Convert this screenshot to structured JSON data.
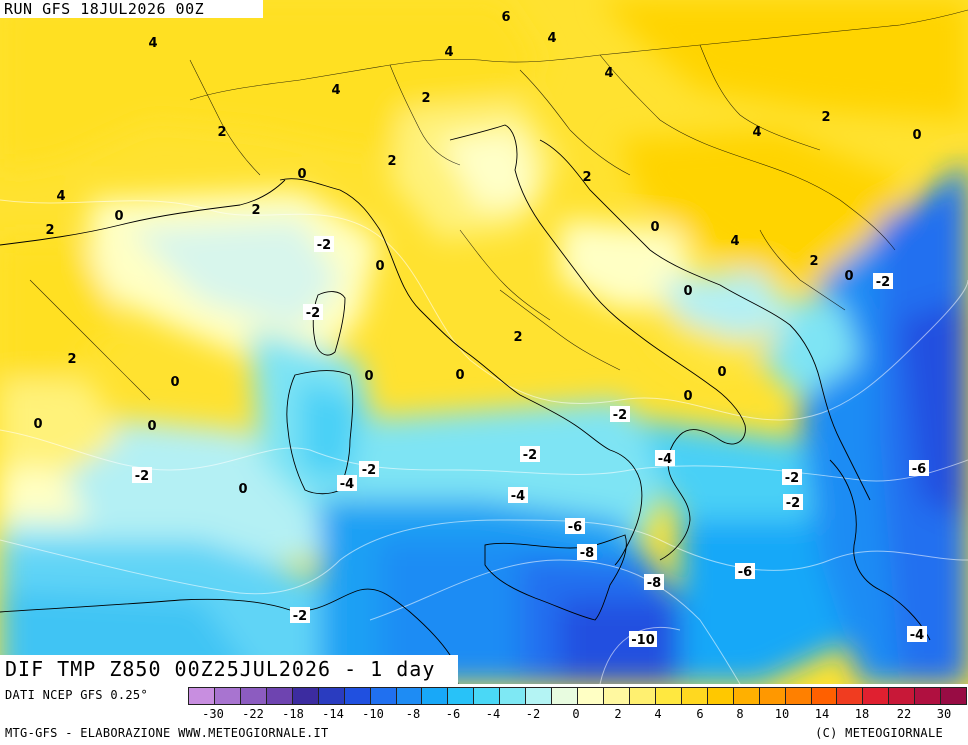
{
  "header": {
    "run_label": "RUN GFS 18JUL2026 00Z"
  },
  "title": {
    "dif_label": "DIF TMP Z850 00Z25JUL2026 - 1 day"
  },
  "source": {
    "label": "DATI NCEP GFS 0.25°"
  },
  "footer": {
    "left": "MTG-GFS - ELABORAZIONE WWW.METEOGIORNALE.IT",
    "right": "(C) METEOGIORNALE"
  },
  "legend": {
    "ticks": [
      "-30",
      "-22",
      "-18",
      "-14",
      "-10",
      "-8",
      "-6",
      "-4",
      "-2",
      "0",
      "2",
      "4",
      "6",
      "8",
      "10",
      "14",
      "18",
      "22",
      "30"
    ],
    "colors": [
      "#c88ee0",
      "#a874d0",
      "#8c5cc0",
      "#6e44b0",
      "#3c2ca0",
      "#2a3cc0",
      "#2050e0",
      "#2070f0",
      "#1e8cf4",
      "#18a8f8",
      "#28c2f8",
      "#4ad8f6",
      "#7ee8f4",
      "#b4f4f4",
      "#e8fce0",
      "#ffffc4",
      "#fff8a0",
      "#fff070",
      "#ffe840",
      "#ffd820",
      "#ffc800",
      "#ffb000",
      "#ff9800",
      "#ff8000",
      "#ff6000",
      "#f03c20",
      "#e02030",
      "#c81838",
      "#b01040",
      "#980c44"
    ]
  },
  "map_labels": [
    {
      "v": "6",
      "box": false
    },
    {
      "v": "4",
      "box": false
    },
    {
      "v": "4",
      "box": false
    },
    {
      "v": "4",
      "box": false
    },
    {
      "v": "4",
      "box": false
    },
    {
      "v": "4",
      "box": false
    },
    {
      "v": "2",
      "box": false
    },
    {
      "v": "2",
      "box": false
    },
    {
      "v": "4",
      "box": false
    },
    {
      "v": "2",
      "box": false
    },
    {
      "v": "0",
      "box": false
    },
    {
      "v": "2",
      "box": false
    },
    {
      "v": "0",
      "box": false
    },
    {
      "v": "2",
      "box": false
    },
    {
      "v": "2",
      "box": false
    },
    {
      "v": "4",
      "box": false
    },
    {
      "v": "0",
      "box": false
    },
    {
      "v": "0",
      "box": false
    },
    {
      "v": "2",
      "box": false
    },
    {
      "v": "4",
      "box": false
    },
    {
      "v": "-2",
      "box": true
    },
    {
      "v": "0",
      "box": false
    },
    {
      "v": "2",
      "box": false
    },
    {
      "v": "0",
      "box": false
    },
    {
      "v": "0",
      "box": false
    },
    {
      "v": "-2",
      "box": true
    },
    {
      "v": "-2",
      "box": true
    },
    {
      "v": "2",
      "box": false
    },
    {
      "v": "2",
      "box": false
    },
    {
      "v": "0",
      "box": false
    },
    {
      "v": "0",
      "box": false
    },
    {
      "v": "0",
      "box": false
    },
    {
      "v": "0",
      "box": false
    },
    {
      "v": "-2",
      "box": true
    },
    {
      "v": "0",
      "box": false
    },
    {
      "v": "0",
      "box": false
    },
    {
      "v": "0",
      "box": false
    },
    {
      "v": "-2",
      "box": true
    },
    {
      "v": "-2",
      "box": true
    },
    {
      "v": "-4",
      "box": true
    },
    {
      "v": "-2",
      "box": true
    },
    {
      "v": "-2",
      "box": true
    },
    {
      "v": "0",
      "box": false
    },
    {
      "v": "-4",
      "box": true
    },
    {
      "v": "-6",
      "box": true
    },
    {
      "v": "-4",
      "box": true
    },
    {
      "v": "-6",
      "box": true
    },
    {
      "v": "-8",
      "box": true
    },
    {
      "v": "-6",
      "box": true
    },
    {
      "v": "-8",
      "box": true
    },
    {
      "v": "-2",
      "box": true
    },
    {
      "v": "-2",
      "box": true
    },
    {
      "v": "-10",
      "box": true
    },
    {
      "v": "-4",
      "box": true
    }
  ]
}
